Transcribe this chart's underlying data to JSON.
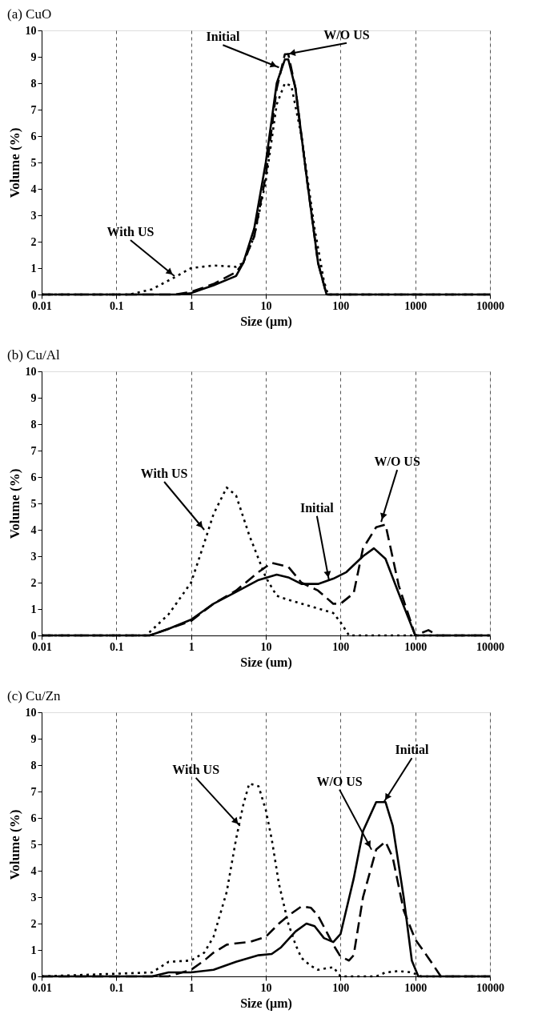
{
  "chart_data": [
    {
      "type": "line",
      "title": "(a) CuO",
      "xlabel": "Size (µm)",
      "ylabel": "Volume (%)",
      "log": "x",
      "grid": "x",
      "xlim": [
        0.01,
        10000
      ],
      "xticks": [
        0.01,
        0.1,
        1,
        10,
        100,
        1000,
        10000
      ],
      "ylim": [
        0,
        10
      ],
      "yticks": [
        0,
        1,
        2,
        3,
        4,
        5,
        6,
        7,
        8,
        9,
        10
      ],
      "series": [
        {
          "color": "#000000",
          "line_style": "solid",
          "x": [
            0.01,
            0.7,
            1,
            2,
            4,
            5,
            7,
            10,
            14,
            18,
            20,
            25,
            35,
            50,
            65,
            10000
          ],
          "values": [
            0,
            0,
            0.05,
            0.35,
            0.7,
            1.2,
            2.5,
            5,
            8,
            8.9,
            8.9,
            7.8,
            4.5,
            1.2,
            0,
            0
          ]
        },
        {
          "color": "#000000",
          "line_style": "dashed",
          "x": [
            0.01,
            0.6,
            1,
            2,
            4,
            5,
            7,
            10,
            14,
            18,
            20,
            25,
            35,
            50,
            65,
            10000
          ],
          "values": [
            0,
            0,
            0.1,
            0.4,
            0.85,
            1.2,
            2.2,
            4.5,
            7.8,
            9.1,
            9.1,
            7.8,
            4.5,
            1.2,
            0,
            0
          ]
        },
        {
          "color": "#000000",
          "line_style": "dotted",
          "x": [
            0.01,
            0.15,
            0.3,
            0.6,
            1,
            2,
            4,
            5,
            7,
            10,
            14,
            18,
            22,
            30,
            45,
            60,
            68,
            10000
          ],
          "values": [
            0,
            0,
            0.2,
            0.65,
            1.0,
            1.1,
            1.05,
            1.2,
            2.2,
            4.3,
            7.2,
            8.0,
            7.9,
            6.0,
            2.5,
            0.5,
            0,
            0
          ]
        }
      ],
      "annotations": [
        {
          "text": "Initial",
          "x": 15,
          "y": 8.6
        },
        {
          "text": "W/O US",
          "x": 19,
          "y": 9.1
        },
        {
          "text": "With US",
          "x": 0.6,
          "y": 0.7
        }
      ]
    },
    {
      "type": "line",
      "title": "(b) Cu/Al",
      "xlabel": "Size (um)",
      "ylabel": "Volume (%)",
      "log": "x",
      "grid": "x",
      "xlim": [
        0.01,
        10000
      ],
      "xticks": [
        0.01,
        0.1,
        1,
        10,
        100,
        1000,
        10000
      ],
      "ylim": [
        0,
        10
      ],
      "yticks": [
        0,
        1,
        2,
        3,
        4,
        5,
        6,
        7,
        8,
        9,
        10
      ],
      "series": [
        {
          "color": "#000000",
          "line_style": "solid",
          "x": [
            0.01,
            0.28,
            0.5,
            1,
            2,
            4,
            8,
            14,
            20,
            30,
            50,
            80,
            120,
            200,
            280,
            400,
            600,
            1000,
            10000
          ],
          "values": [
            0,
            0,
            0.25,
            0.6,
            1.2,
            1.65,
            2.1,
            2.3,
            2.2,
            1.95,
            1.95,
            2.15,
            2.4,
            3.0,
            3.3,
            2.9,
            1.6,
            0,
            0
          ]
        },
        {
          "color": "#000000",
          "line_style": "dashed",
          "x": [
            0.01,
            0.28,
            0.5,
            1,
            2,
            4,
            8,
            12,
            20,
            30,
            50,
            80,
            100,
            150,
            200,
            300,
            400,
            600,
            1000,
            1500,
            2000,
            10000
          ],
          "values": [
            0,
            0,
            0.25,
            0.55,
            1.2,
            1.7,
            2.4,
            2.75,
            2.6,
            2.0,
            1.7,
            1.2,
            1.2,
            1.6,
            3.3,
            4.1,
            4.2,
            1.9,
            0,
            0.2,
            0,
            0
          ]
        },
        {
          "color": "#000000",
          "line_style": "dotted",
          "x": [
            0.01,
            0.25,
            0.5,
            1,
            1.5,
            2,
            3,
            4,
            6,
            10,
            14,
            20,
            40,
            80,
            100,
            130,
            160,
            10000
          ],
          "values": [
            0,
            0,
            0.8,
            2.0,
            3.5,
            4.6,
            5.6,
            5.3,
            3.8,
            2.2,
            1.5,
            1.35,
            1.1,
            0.85,
            0.5,
            0,
            0,
            0
          ]
        }
      ],
      "annotations": [
        {
          "text": "With US",
          "x": 1.5,
          "y": 4.0
        },
        {
          "text": "Initial",
          "x": 70,
          "y": 2.1
        },
        {
          "text": "W/O US",
          "x": 350,
          "y": 4.3
        }
      ]
    },
    {
      "type": "line",
      "title": "(c) Cu/Zn",
      "xlabel": "Size (µm)",
      "ylabel": "Volume (%)",
      "log": "x",
      "grid": "x",
      "xlim": [
        0.01,
        10000
      ],
      "xticks": [
        0.01,
        0.1,
        1,
        10,
        100,
        1000,
        10000
      ],
      "ylim": [
        0,
        10
      ],
      "yticks": [
        0,
        1,
        2,
        3,
        4,
        5,
        6,
        7,
        8,
        9,
        10
      ],
      "series": [
        {
          "color": "#000000",
          "line_style": "solid",
          "x": [
            0.01,
            0.3,
            0.5,
            1,
            2,
            4,
            8,
            12,
            16,
            25,
            35,
            45,
            60,
            80,
            100,
            150,
            200,
            300,
            400,
            500,
            700,
            900,
            1100,
            10000
          ],
          "values": [
            0,
            0,
            0.15,
            0.15,
            0.25,
            0.55,
            0.8,
            0.85,
            1.1,
            1.7,
            2.0,
            1.9,
            1.45,
            1.3,
            1.6,
            3.7,
            5.5,
            6.6,
            6.6,
            5.7,
            3.0,
            0.6,
            0,
            0
          ]
        },
        {
          "color": "#000000",
          "line_style": "dashed",
          "x": [
            0.01,
            0.5,
            1,
            1.5,
            2,
            3,
            4,
            6,
            10,
            15,
            20,
            30,
            40,
            50,
            80,
            100,
            130,
            150,
            200,
            300,
            400,
            500,
            700,
            1000,
            1500,
            2200,
            10000
          ],
          "values": [
            0,
            0,
            0.25,
            0.6,
            0.9,
            1.2,
            1.25,
            1.3,
            1.5,
            2.0,
            2.3,
            2.65,
            2.6,
            2.3,
            1.2,
            0.75,
            0.6,
            0.8,
            3.0,
            4.8,
            5.1,
            4.5,
            2.5,
            1.4,
            0.7,
            0,
            0
          ]
        },
        {
          "color": "#000000",
          "line_style": "dotted",
          "x": [
            0.01,
            0.3,
            0.5,
            1,
            1.5,
            2,
            3,
            4,
            5,
            6,
            8,
            10,
            12,
            15,
            20,
            25,
            30,
            40,
            50,
            80,
            100,
            150,
            300,
            400,
            600,
            900,
            1200,
            10000
          ],
          "values": [
            0,
            0.15,
            0.55,
            0.6,
            0.9,
            1.5,
            3.2,
            5.2,
            6.5,
            7.3,
            7.2,
            6.3,
            5.2,
            3.5,
            2.0,
            1.2,
            0.7,
            0.4,
            0.25,
            0.35,
            0,
            0,
            0,
            0.15,
            0.2,
            0.15,
            0,
            0
          ]
        }
      ],
      "annotations": [
        {
          "text": "With US",
          "x": 4.5,
          "y": 5.7
        },
        {
          "text": "W/O US",
          "x": 260,
          "y": 4.8
        },
        {
          "text": "Initial",
          "x": 380,
          "y": 6.6
        }
      ]
    }
  ]
}
